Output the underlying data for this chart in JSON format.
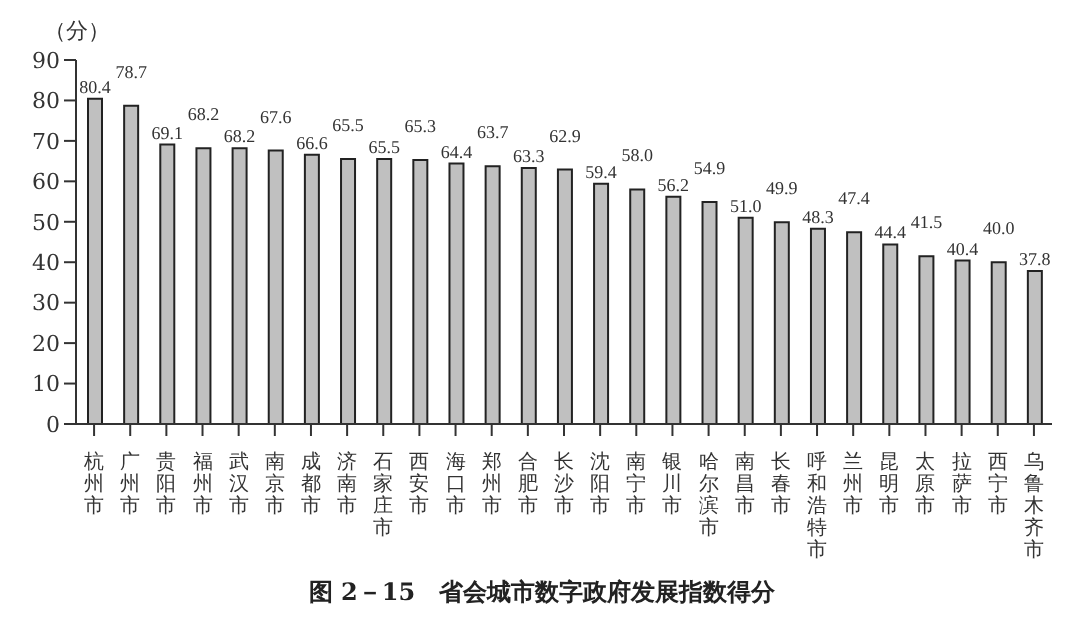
{
  "chart_data": {
    "type": "bar",
    "title": "图 2－15　省会城市数字政府发展指数得分",
    "ylabel": "（分）",
    "categories": [
      "杭州市",
      "广州市",
      "贵阳市",
      "福州市",
      "武汉市",
      "南京市",
      "成都市",
      "济南市",
      "石家庄市",
      "西安市",
      "海口市",
      "郑州市",
      "合肥市",
      "长沙市",
      "沈阳市",
      "南宁市",
      "银川市",
      "哈尔滨市",
      "南昌市",
      "长春市",
      "呼和浩特市",
      "兰州市",
      "昆明市",
      "太原市",
      "拉萨市",
      "西宁市",
      "乌鲁木齐市"
    ],
    "values": [
      80.4,
      78.7,
      69.1,
      68.2,
      68.2,
      67.6,
      66.6,
      65.5,
      65.5,
      65.3,
      64.4,
      63.7,
      63.3,
      62.9,
      59.4,
      58.0,
      56.2,
      54.9,
      51.0,
      49.9,
      48.3,
      47.4,
      44.4,
      41.5,
      40.4,
      40.0,
      37.8
    ],
    "color": "#c0c0c0",
    "ylim": [
      0,
      90
    ],
    "yticks": [
      0,
      10,
      20,
      30,
      40,
      50,
      60,
      70,
      80,
      90
    ],
    "grid": false,
    "value_labels": [
      "80.4",
      "78.7",
      "69.1",
      "68.2",
      "68.2",
      "67.6",
      "66.6",
      "65.5",
      "65.5",
      "65.3",
      "64.4",
      "63.7",
      "63.3",
      "62.9",
      "59.4",
      "58.0",
      "56.2",
      "54.9",
      "51.0",
      "49.9",
      "48.3",
      "47.4",
      "44.4",
      "41.5",
      "40.4",
      "40.0",
      "37.8"
    ]
  }
}
